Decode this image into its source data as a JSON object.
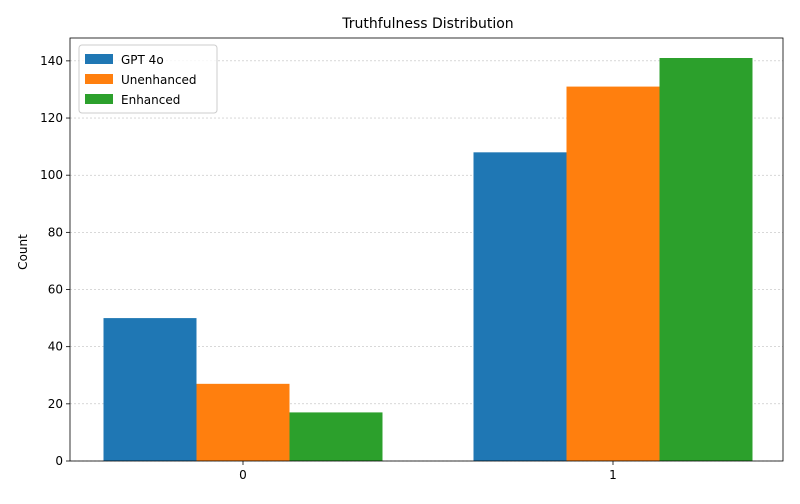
{
  "chart_data": {
    "type": "bar",
    "title": "Truthfulness Distribution",
    "xlabel": "",
    "ylabel": "Count",
    "categories": [
      "0",
      "1"
    ],
    "series": [
      {
        "name": "GPT 4o",
        "values": [
          50,
          108
        ],
        "color": "#1f77b4"
      },
      {
        "name": "Unenhanced",
        "values": [
          27,
          131
        ],
        "color": "#ff7f0e"
      },
      {
        "name": "Enhanced",
        "values": [
          17,
          141
        ],
        "color": "#2ca02c"
      }
    ],
    "ylim": [
      0,
      148
    ],
    "yticks": [
      0,
      20,
      40,
      60,
      80,
      100,
      120,
      140
    ],
    "grid": true,
    "legend_position": "top-left"
  }
}
